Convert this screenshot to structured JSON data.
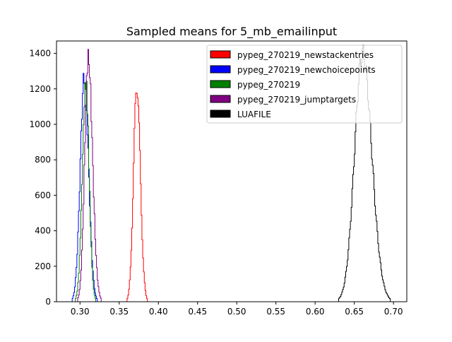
{
  "chart_data": {
    "type": "histogram",
    "title": "Sampled means for 5_mb_emailinput",
    "xlabel": "",
    "ylabel": "",
    "xlim": [
      0.27,
      0.717
    ],
    "ylim": [
      0,
      1470
    ],
    "x_ticks": [
      {
        "value": 0.3,
        "label": "0.30"
      },
      {
        "value": 0.35,
        "label": "0.35"
      },
      {
        "value": 0.4,
        "label": "0.40"
      },
      {
        "value": 0.45,
        "label": "0.45"
      },
      {
        "value": 0.5,
        "label": "0.50"
      },
      {
        "value": 0.55,
        "label": "0.55"
      },
      {
        "value": 0.6,
        "label": "0.60"
      },
      {
        "value": 0.65,
        "label": "0.65"
      },
      {
        "value": 0.7,
        "label": "0.70"
      }
    ],
    "y_ticks": [
      {
        "value": 0,
        "label": "0"
      },
      {
        "value": 200,
        "label": "200"
      },
      {
        "value": 400,
        "label": "400"
      },
      {
        "value": 600,
        "label": "600"
      },
      {
        "value": 800,
        "label": "800"
      },
      {
        "value": 1000,
        "label": "1000"
      },
      {
        "value": 1200,
        "label": "1200"
      },
      {
        "value": 1400,
        "label": "1400"
      }
    ],
    "legend_position": "top-right",
    "grid": false,
    "series": [
      {
        "name": "pypeg_270219_newstackentries",
        "color": "#ff0000",
        "peak_x": 0.3725,
        "peak_count": 1220,
        "min": 0.36,
        "max": 0.386
      },
      {
        "name": "pypeg_270219_newchoicepoints",
        "color": "#0000ff",
        "peak_x": 0.3055,
        "peak_count": 1265,
        "min": 0.29,
        "max": 0.322
      },
      {
        "name": "pypeg_270219",
        "color": "#008000",
        "peak_x": 0.3075,
        "peak_count": 1235,
        "min": 0.294,
        "max": 0.32
      },
      {
        "name": "pypeg_270219_jumptargets",
        "color": "#800080",
        "peak_x": 0.3105,
        "peak_count": 1375,
        "min": 0.297,
        "max": 0.327
      },
      {
        "name": "LUAFILE",
        "color": "#000000",
        "peak_x": 0.6605,
        "peak_count": 1400,
        "min": 0.63,
        "max": 0.696
      }
    ]
  }
}
